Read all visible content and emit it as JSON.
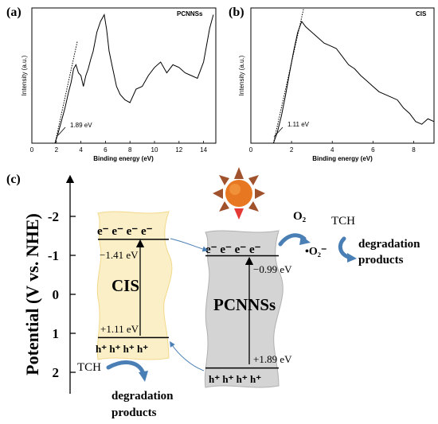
{
  "colors": {
    "cis_fill": "#fbefc8",
    "cis_edge": "#f2d88a",
    "pcn_fill": "#d4d4d4",
    "pcn_edge": "#b0b0b0",
    "arrow_blue": "#4a7fb5",
    "sun_orange": "#e87722",
    "sun_ray": "#a0522d",
    "sun_tip": "#e53935"
  },
  "chart_data": [
    {
      "type": "line",
      "panel": "(a)",
      "title": "PCNNSs",
      "xlabel": "Binding energy (eV)",
      "ylabel": "Intensity (a.u.)",
      "xlim": [
        0,
        15
      ],
      "xticks": [
        0,
        2,
        4,
        6,
        8,
        10,
        12,
        14
      ],
      "annotation": "1.89 eV",
      "edge_ev": 1.89,
      "tangent": [
        [
          1.89,
          0.0
        ],
        [
          3.7,
          0.75
        ]
      ],
      "ylim": [
        0,
        1
      ],
      "points": [
        [
          0,
          0.0
        ],
        [
          1.0,
          0.0
        ],
        [
          1.89,
          0.0
        ],
        [
          2.1,
          0.06
        ],
        [
          2.4,
          0.16
        ],
        [
          2.7,
          0.26
        ],
        [
          3.0,
          0.38
        ],
        [
          3.2,
          0.45
        ],
        [
          3.4,
          0.55
        ],
        [
          3.6,
          0.58
        ],
        [
          3.8,
          0.52
        ],
        [
          4.0,
          0.5
        ],
        [
          4.2,
          0.42
        ],
        [
          4.4,
          0.5
        ],
        [
          4.6,
          0.55
        ],
        [
          4.8,
          0.62
        ],
        [
          5.0,
          0.68
        ],
        [
          5.3,
          0.82
        ],
        [
          5.6,
          0.9
        ],
        [
          5.9,
          0.95
        ],
        [
          6.1,
          0.84
        ],
        [
          6.3,
          0.68
        ],
        [
          6.6,
          0.55
        ],
        [
          6.9,
          0.42
        ],
        [
          7.2,
          0.36
        ],
        [
          7.6,
          0.32
        ],
        [
          8.0,
          0.3
        ],
        [
          8.5,
          0.4
        ],
        [
          9.0,
          0.42
        ],
        [
          9.5,
          0.5
        ],
        [
          10.0,
          0.56
        ],
        [
          10.5,
          0.6
        ],
        [
          11.0,
          0.52
        ],
        [
          11.5,
          0.58
        ],
        [
          12.0,
          0.56
        ],
        [
          12.5,
          0.52
        ],
        [
          13.0,
          0.5
        ],
        [
          13.5,
          0.48
        ],
        [
          14.0,
          0.6
        ],
        [
          14.5,
          0.85
        ],
        [
          14.8,
          0.95
        ]
      ]
    },
    {
      "type": "line",
      "panel": "(b)",
      "title": "CIS",
      "xlabel": "Binding energy (eV)",
      "ylabel": "Intensity (a.u.)",
      "xlim": [
        0,
        9
      ],
      "xticks": [
        0,
        2,
        4,
        6,
        8
      ],
      "annotation": "1.11 eV",
      "edge_ev": 1.11,
      "tangent": [
        [
          1.11,
          0.0
        ],
        [
          2.6,
          1.0
        ]
      ],
      "ylim": [
        0,
        1
      ],
      "points": [
        [
          0.0,
          0.0
        ],
        [
          0.5,
          0.0
        ],
        [
          1.11,
          0.0
        ],
        [
          1.3,
          0.08
        ],
        [
          1.5,
          0.2
        ],
        [
          1.7,
          0.35
        ],
        [
          1.9,
          0.52
        ],
        [
          2.1,
          0.68
        ],
        [
          2.3,
          0.82
        ],
        [
          2.5,
          0.9
        ],
        [
          2.7,
          0.86
        ],
        [
          3.0,
          0.82
        ],
        [
          3.3,
          0.78
        ],
        [
          3.6,
          0.74
        ],
        [
          3.9,
          0.72
        ],
        [
          4.2,
          0.7
        ],
        [
          4.5,
          0.64
        ],
        [
          4.8,
          0.58
        ],
        [
          5.1,
          0.55
        ],
        [
          5.4,
          0.5
        ],
        [
          5.7,
          0.46
        ],
        [
          6.0,
          0.42
        ],
        [
          6.3,
          0.38
        ],
        [
          6.6,
          0.36
        ],
        [
          6.9,
          0.34
        ],
        [
          7.2,
          0.32
        ],
        [
          7.5,
          0.26
        ],
        [
          7.8,
          0.22
        ],
        [
          8.1,
          0.16
        ],
        [
          8.4,
          0.14
        ],
        [
          8.7,
          0.18
        ],
        [
          9.0,
          0.16
        ]
      ]
    },
    {
      "type": "diagram",
      "panel": "(c)",
      "ylabel": "Potential (V vs. NHE)",
      "yticks": [
        -2,
        -1,
        0,
        1,
        2
      ],
      "cis": {
        "name": "CIS",
        "cb": -1.41,
        "vb": 1.11,
        "cb_label": "−1.41 eV",
        "vb_label": "+1.11 eV"
      },
      "pcnnss": {
        "name": "PCNNSs",
        "cb": -0.99,
        "vb": 1.89,
        "cb_label": "−0.99 eV",
        "vb_label": "+1.89 eV"
      },
      "electrons": "e⁻ e⁻ e⁻ e⁻",
      "holes": "h⁺ h⁺ h⁺ h⁺",
      "o2": "O₂",
      "superoxide": "•O₂⁻",
      "tch_top": "TCH",
      "deg_top": [
        "degradation",
        "products"
      ],
      "tch_bottom": "TCH",
      "deg_bottom": [
        "degradation",
        "products"
      ]
    }
  ]
}
